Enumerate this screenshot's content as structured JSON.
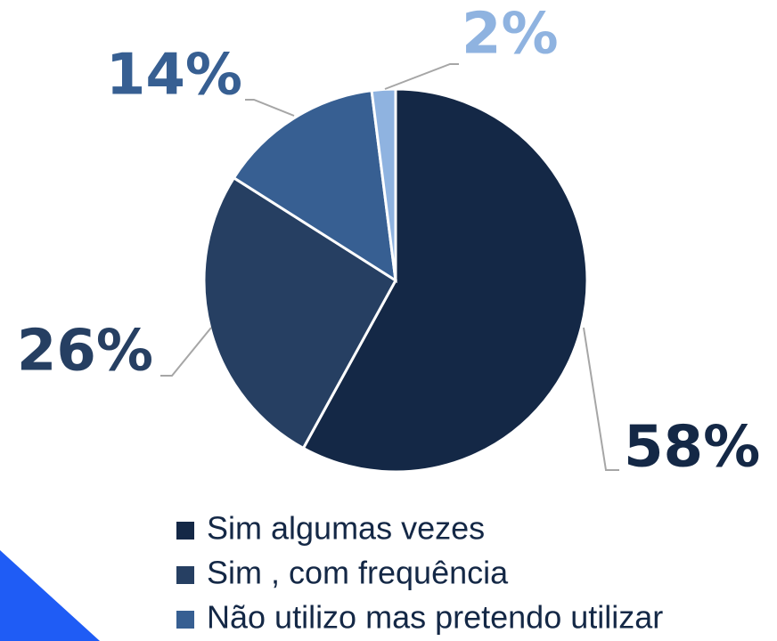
{
  "chart_data": {
    "type": "pie",
    "categories": [
      "Sim algumas vezes",
      "Sim , com frequência",
      "Não utilizo mas pretendo utilizar",
      null
    ],
    "values": [
      58,
      26,
      14,
      2
    ],
    "value_labels": [
      "58%",
      "26%",
      "14%",
      "2%"
    ],
    "colors": [
      "#142846",
      "#263f62",
      "#375f92",
      "#8fb3e0"
    ],
    "legend": "bottom"
  }
}
